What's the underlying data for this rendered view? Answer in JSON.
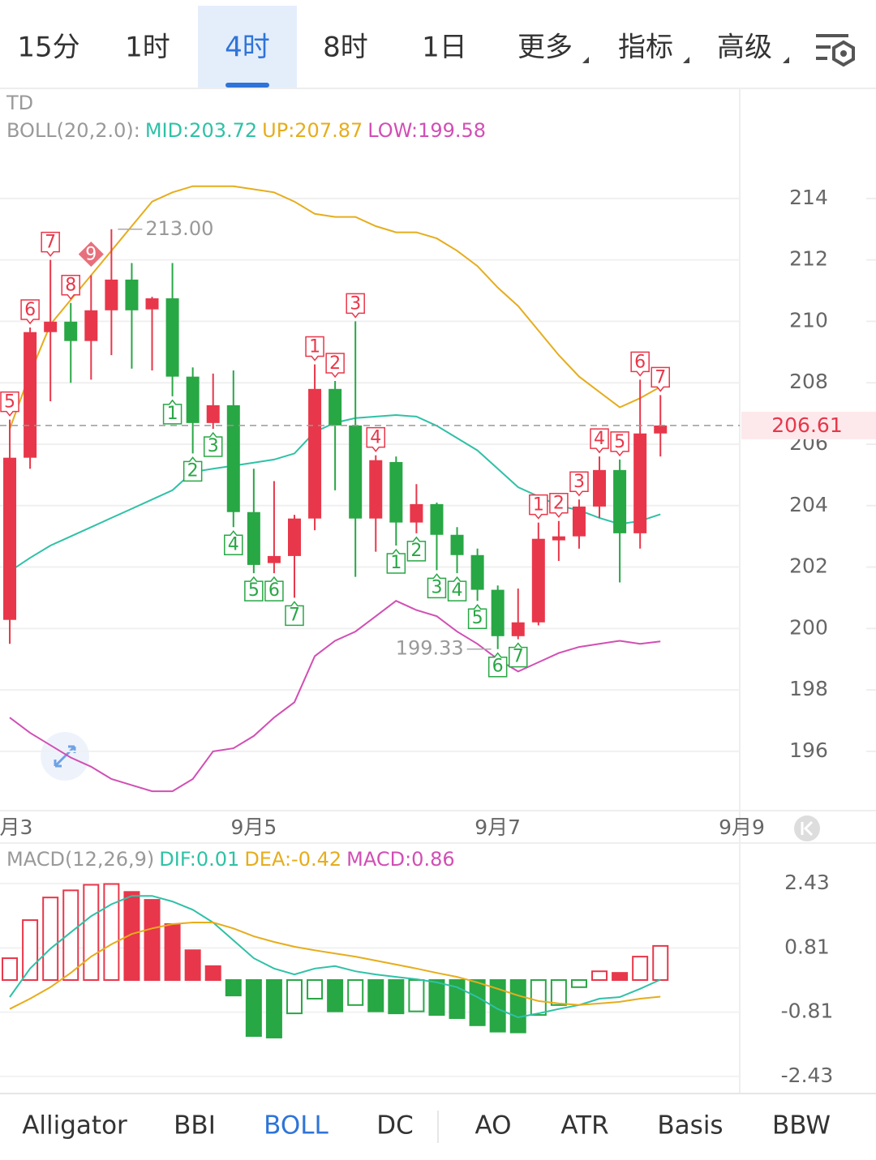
{
  "tabs": {
    "items": [
      "15分",
      "1时",
      "4时",
      "8时",
      "1日",
      "更多",
      "指标",
      "高级"
    ],
    "selected": 2
  },
  "chart_data": [
    {
      "type": "candlestick",
      "indicator_label": "TD",
      "overlay_label": "BOLL(20,2.0):",
      "up_color": "#e8374a",
      "down_color": "#28a745",
      "open": [
        200.28,
        205.56,
        209.65,
        209.99,
        209.36,
        210.36,
        211.36,
        210.39,
        210.75,
        208.2,
        206.69,
        207.27,
        203.79,
        202.13,
        202.36,
        203.58,
        207.8,
        206.61,
        203.58,
        205.42,
        203.45,
        204.05,
        203.05,
        202.39,
        201.26,
        199.75,
        200.2,
        202.87,
        203.0,
        203.97,
        205.16,
        203.1,
        206.35
      ],
      "high": [
        206.8,
        209.8,
        212.0,
        210.6,
        211.5,
        213.0,
        211.9,
        210.8,
        211.9,
        208.5,
        208.3,
        208.4,
        205.2,
        204.8,
        203.7,
        208.6,
        208.06,
        210.0,
        205.64,
        205.6,
        204.7,
        204.1,
        203.3,
        202.6,
        201.4,
        201.3,
        203.45,
        203.5,
        204.2,
        205.6,
        205.5,
        208.1,
        207.6
      ],
      "low": [
        199.5,
        205.2,
        207.4,
        208.0,
        208.1,
        208.9,
        208.46,
        208.4,
        207.56,
        205.7,
        206.5,
        203.3,
        201.8,
        201.8,
        201.0,
        203.2,
        204.5,
        201.68,
        202.5,
        202.7,
        203.1,
        201.9,
        201.8,
        200.9,
        199.33,
        199.65,
        200.1,
        202.2,
        202.6,
        203.6,
        201.5,
        202.6,
        205.6
      ],
      "close": [
        205.56,
        209.65,
        209.99,
        209.36,
        210.36,
        211.36,
        210.36,
        210.75,
        208.2,
        206.69,
        207.27,
        203.79,
        202.07,
        202.36,
        203.58,
        207.8,
        206.61,
        203.58,
        205.48,
        203.45,
        204.05,
        203.05,
        202.39,
        201.26,
        199.75,
        200.2,
        202.92,
        203.0,
        203.97,
        205.16,
        203.1,
        206.35,
        206.61
      ],
      "td_sell": [
        "5",
        "6",
        "7",
        "8",
        "9",
        null,
        null,
        null,
        null,
        null,
        null,
        null,
        null,
        null,
        null,
        "1",
        "2",
        "3",
        "4",
        null,
        null,
        null,
        null,
        null,
        null,
        null,
        "1",
        "2",
        "3",
        "4",
        "5",
        "6",
        "7"
      ],
      "td_buy": [
        null,
        null,
        null,
        null,
        null,
        null,
        null,
        null,
        "1",
        "2",
        "3",
        "4",
        "5",
        "6",
        "7",
        null,
        null,
        null,
        null,
        "1",
        "2",
        "3",
        "4",
        "5",
        "6",
        "7",
        null,
        null,
        null,
        null,
        null,
        null,
        null
      ],
      "series": [
        {
          "name": "MID",
          "legend": "MID:203.72",
          "color": "#2fc1a6",
          "values": [
            201.86,
            202.3,
            202.7,
            203.0,
            203.3,
            203.6,
            203.9,
            204.2,
            204.5,
            205.1,
            205.2,
            205.3,
            205.4,
            205.5,
            205.7,
            206.4,
            206.7,
            206.85,
            206.9,
            206.95,
            206.9,
            206.6,
            206.2,
            205.8,
            205.2,
            204.6,
            204.3,
            204.0,
            203.85,
            203.6,
            203.4,
            203.5,
            203.72
          ]
        },
        {
          "name": "UP",
          "legend": "UP:207.87",
          "color": "#e6ad1c",
          "values": [
            206.5,
            208.3,
            209.9,
            210.7,
            211.5,
            212.3,
            213.1,
            213.9,
            214.2,
            214.4,
            214.4,
            214.4,
            214.3,
            214.2,
            213.9,
            213.5,
            213.4,
            213.4,
            213.1,
            212.9,
            212.9,
            212.7,
            212.3,
            211.8,
            211.1,
            210.5,
            209.7,
            208.9,
            208.2,
            207.7,
            207.2,
            207.5,
            207.87
          ]
        },
        {
          "name": "LOW",
          "legend": "LOW:199.58",
          "color": "#d14fb4",
          "values": [
            197.1,
            196.6,
            196.2,
            195.8,
            195.5,
            195.1,
            194.9,
            194.7,
            194.7,
            195.1,
            196.0,
            196.1,
            196.5,
            197.1,
            197.6,
            199.1,
            199.6,
            199.9,
            200.4,
            200.9,
            200.6,
            200.4,
            199.9,
            199.5,
            199.0,
            198.6,
            198.9,
            199.2,
            199.4,
            199.5,
            199.6,
            199.5,
            199.58
          ]
        }
      ],
      "high_label": {
        "value": 213.0,
        "label": "213.00"
      },
      "low_label": 199.33,
      "last_price": 206.61,
      "xlim": [
        -0.48,
        35.9
      ],
      "xticks": [
        {
          "value": 0,
          "label": "月3"
        },
        {
          "value": 12,
          "label": "9月5"
        },
        {
          "value": 24,
          "label": "9月7"
        },
        {
          "value": 36,
          "label": "9月9"
        }
      ],
      "ylim": [
        194.07,
        217.56
      ],
      "yticks": [
        196,
        198,
        200,
        202,
        204,
        206,
        208,
        210,
        212,
        214
      ],
      "grid": true
    },
    {
      "type": "macd",
      "label": "MACD(12,26,9)",
      "hist_legend": "MACD:0.86",
      "hist_legend_color": "#d14fb4",
      "up_color": "#e8374a",
      "down_color": "#28a745",
      "values": [
        0.55,
        1.51,
        2.08,
        2.26,
        2.4,
        2.42,
        2.22,
        2.02,
        1.41,
        0.75,
        0.35,
        -0.39,
        -1.41,
        -1.45,
        -0.84,
        -0.47,
        -0.79,
        -0.63,
        -0.79,
        -0.84,
        -0.79,
        -0.88,
        -0.96,
        -1.14,
        -1.3,
        -1.32,
        -0.88,
        -0.63,
        -0.18,
        0.22,
        0.18,
        0.59,
        0.86
      ],
      "series": [
        {
          "name": "DIF",
          "legend": "DIF:0.01",
          "color": "#2fc1a6",
          "values": [
            -0.43,
            0.29,
            0.79,
            1.2,
            1.61,
            1.91,
            2.12,
            2.12,
            1.98,
            1.77,
            1.45,
            1.0,
            0.55,
            0.29,
            0.14,
            0.29,
            0.35,
            0.22,
            0.14,
            0.08,
            0.02,
            -0.06,
            -0.18,
            -0.43,
            -0.73,
            -0.94,
            -0.84,
            -0.73,
            -0.63,
            -0.47,
            -0.43,
            -0.22,
            0.01
          ]
        },
        {
          "name": "DEA",
          "legend": "DEA:-0.42",
          "color": "#e6ad1c",
          "values": [
            -0.73,
            -0.47,
            -0.18,
            0.18,
            0.59,
            0.9,
            1.16,
            1.3,
            1.41,
            1.45,
            1.45,
            1.3,
            1.1,
            0.96,
            0.84,
            0.75,
            0.67,
            0.59,
            0.49,
            0.39,
            0.29,
            0.18,
            0.08,
            -0.06,
            -0.22,
            -0.39,
            -0.53,
            -0.59,
            -0.63,
            -0.59,
            -0.55,
            -0.47,
            -0.42
          ]
        }
      ],
      "xlim": [
        -0.48,
        35.9
      ],
      "ylim": [
        -2.84,
        3.35
      ],
      "yticks": [
        2.43,
        0.81,
        -0.81,
        -2.43
      ],
      "grid": true
    }
  ],
  "indicator_tabs": {
    "items": [
      "Alligator",
      "BBI",
      "BOLL",
      "DC",
      "AO",
      "ATR",
      "Basis",
      "BBW"
    ],
    "selected": 2
  }
}
